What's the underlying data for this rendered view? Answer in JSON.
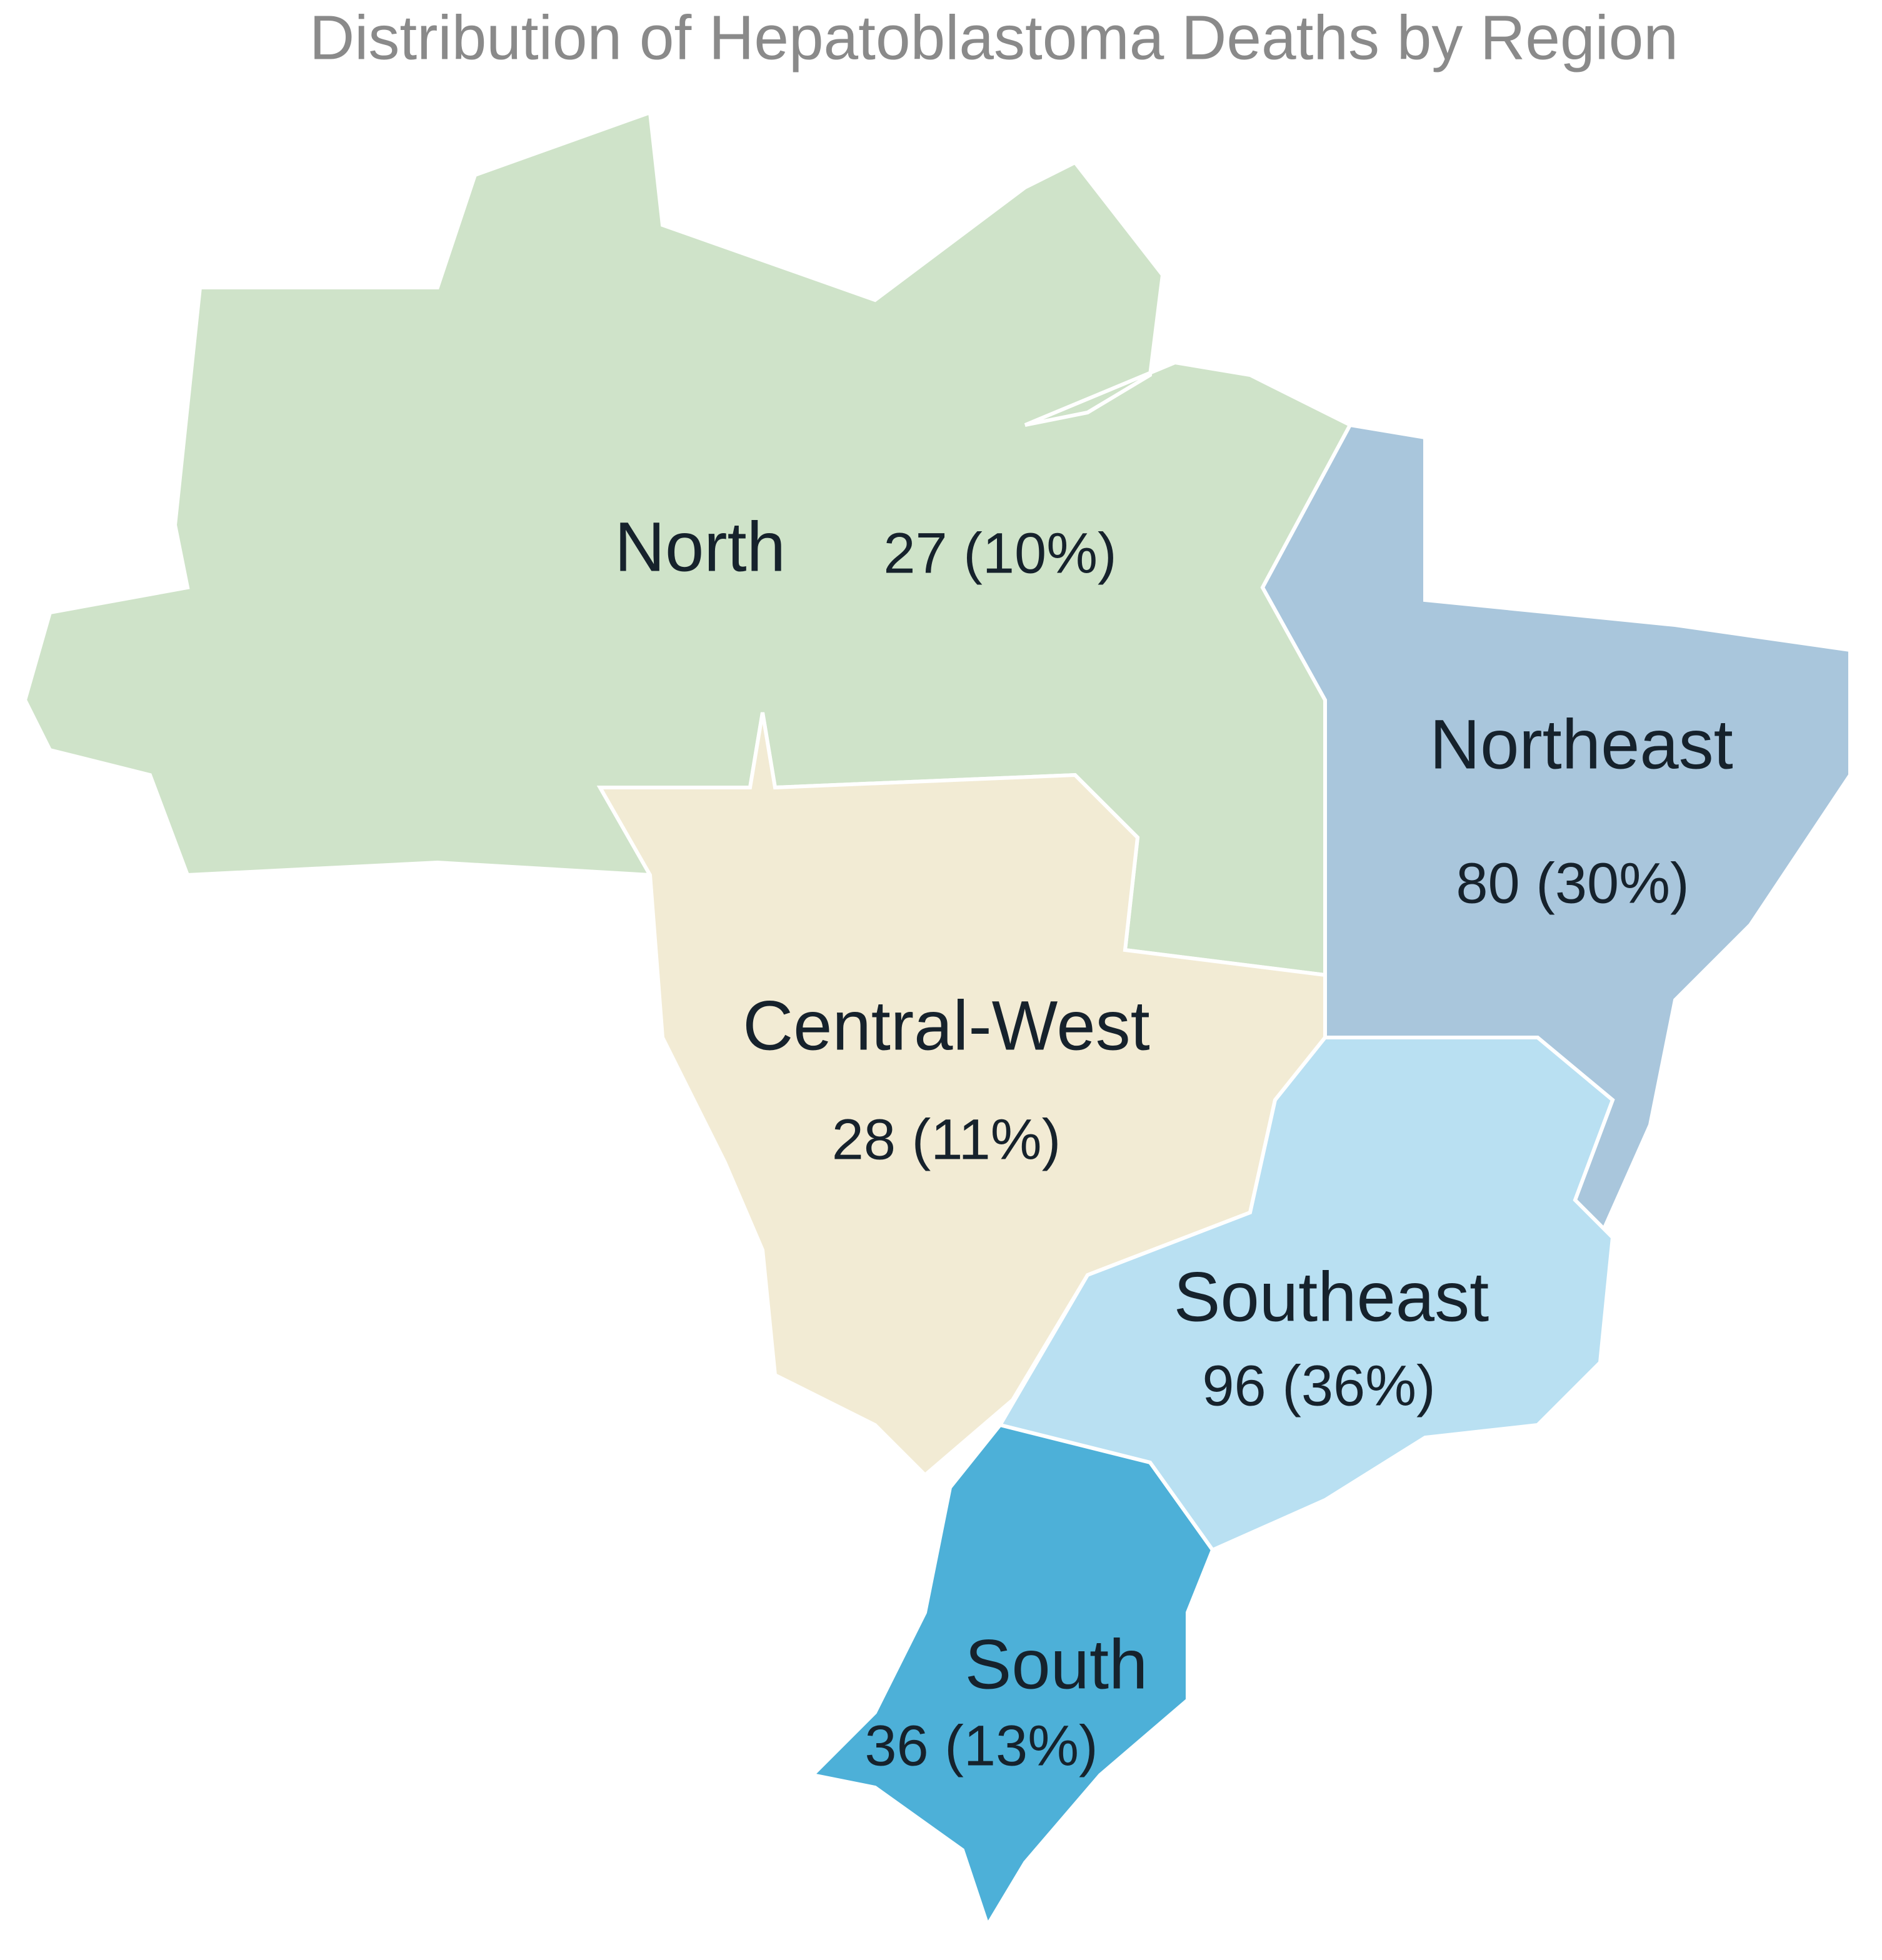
{
  "title": "Distribution of Hepatoblastoma Deaths by Region",
  "regions": [
    {
      "name": "North",
      "value_label": "27 (10%)",
      "color": "#cfe3c9"
    },
    {
      "name": "Northeast",
      "value_label": "80 (30%)",
      "color": "#a9c6dc"
    },
    {
      "name": "Central-West",
      "value_label": "28 (11%)",
      "color": "#f2ebd4"
    },
    {
      "name": "Southeast",
      "value_label": "96 (36%)",
      "color": "#b9e0f2"
    },
    {
      "name": "South",
      "value_label": "36 (13%)",
      "color": "#4db0d8"
    }
  ]
}
